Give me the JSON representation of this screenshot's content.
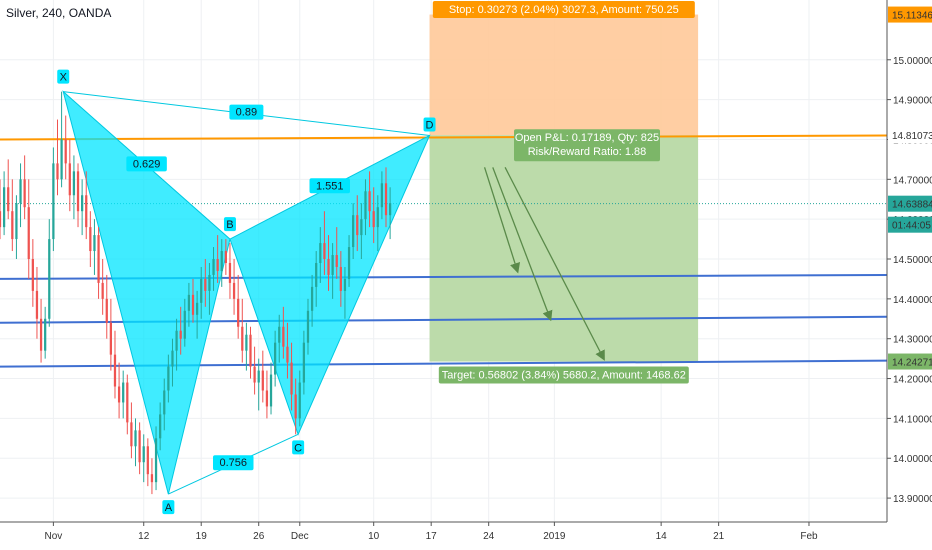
{
  "header": {
    "title": "Silver, 240, OANDA"
  },
  "colors": {
    "pattern_fill": "#00e5ff",
    "pattern_stroke": "#00c8e0",
    "up_candle": "#26a69a",
    "down_candle": "#ef5350",
    "stop_zone": "#ffc999",
    "target_zone": "#b8d9a5",
    "orange_line": "#ff9800",
    "blue_line": "#3f6fd1",
    "stop_label_bg": "#ff9800",
    "target_label_bg": "#7cb668",
    "current_price_bg": "#26a69a",
    "arrow": "#5a8a4a"
  },
  "chart_data": {
    "type": "candlestick",
    "symbol": "Silver",
    "timeframe": "240",
    "source": "OANDA",
    "ylim": [
      13.84,
      15.15
    ],
    "y_ticks": [
      "13.90000",
      "14.00000",
      "14.10000",
      "14.20000",
      "14.30000",
      "14.40000",
      "14.50000",
      "14.60000",
      "14.70000",
      "14.80000",
      "14.90000",
      "15.00000"
    ],
    "y_tick_values": [
      13.9,
      14.0,
      14.1,
      14.2,
      14.3,
      14.4,
      14.5,
      14.6,
      14.7,
      14.8,
      14.9,
      15.0
    ],
    "x_ticks": [
      "Nov",
      "12",
      "19",
      "26",
      "Dec",
      "10",
      "17",
      "24",
      "2019",
      "14",
      "21",
      "Feb"
    ],
    "x_tick_days": [
      1,
      12,
      19,
      26,
      31,
      40,
      47,
      54,
      62,
      75,
      82,
      93
    ],
    "xlim_days": [
      -5.5,
      102.5
    ],
    "price_labels": {
      "stop": "15.11346",
      "entry": "14.81073",
      "current": "14.63884",
      "countdown": "01:44:05",
      "target": "14.24271"
    },
    "price_label_values": {
      "stop": 15.11346,
      "entry": 14.81073,
      "current": 14.63884,
      "target": 14.24271
    },
    "harmonic_pattern": {
      "points": [
        {
          "label": "X",
          "day": 2.2,
          "price": 14.92
        },
        {
          "label": "A",
          "day": 15.0,
          "price": 13.91
        },
        {
          "label": "B",
          "day": 22.5,
          "price": 14.55
        },
        {
          "label": "C",
          "day": 30.8,
          "price": 14.06
        },
        {
          "label": "D",
          "day": 46.8,
          "price": 14.81
        }
      ],
      "ratios": [
        {
          "text": "0.89",
          "between": "X-D"
        },
        {
          "text": "0.629",
          "between": "X-B"
        },
        {
          "text": "1.551",
          "between": "B-D"
        },
        {
          "text": "0.756",
          "between": "A-C"
        }
      ]
    },
    "position": {
      "stop_text": "Stop: 0.30273 (2.04%) 3027.3, Amount: 750.25",
      "target_text": "Target: 0.56802 (3.84%) 5680.2, Amount: 1468.62",
      "open_pl_text": "Open P&L: 0.17189, Qty: 825",
      "rr_text": "Risk/Reward Ratio: 1.88",
      "entry": 14.81073,
      "stop": 15.11346,
      "target": 14.24271,
      "start_day": 46.8,
      "end_day": 79.5
    },
    "horizontal_lines": [
      {
        "color": "orange",
        "price_left": 14.8,
        "price_right": 14.81
      },
      {
        "color": "blue",
        "price_left": 14.45,
        "price_right": 14.46
      },
      {
        "color": "blue",
        "price_left": 14.34,
        "price_right": 14.355
      },
      {
        "color": "blue",
        "price_left": 14.23,
        "price_right": 14.245
      }
    ],
    "arrows": [
      {
        "from_day": 53.5,
        "from_price": 14.73,
        "to_day": 57.5,
        "to_price": 14.47
      },
      {
        "from_day": 54.5,
        "from_price": 14.73,
        "to_day": 61.5,
        "to_price": 14.35
      },
      {
        "from_day": 56.0,
        "from_price": 14.73,
        "to_day": 68.0,
        "to_price": 14.25
      }
    ],
    "ohlc": [
      {
        "d": -5.5,
        "o": 14.62,
        "h": 14.7,
        "l": 14.55,
        "c": 14.58
      },
      {
        "d": -5.0,
        "o": 14.58,
        "h": 14.72,
        "l": 14.56,
        "c": 14.68
      },
      {
        "d": -4.5,
        "o": 14.68,
        "h": 14.75,
        "l": 14.6,
        "c": 14.62
      },
      {
        "d": -4.0,
        "o": 14.62,
        "h": 14.7,
        "l": 14.52,
        "c": 14.55
      },
      {
        "d": -3.5,
        "o": 14.55,
        "h": 14.66,
        "l": 14.5,
        "c": 14.64
      },
      {
        "d": -3.0,
        "o": 14.64,
        "h": 14.74,
        "l": 14.58,
        "c": 14.7
      },
      {
        "d": -2.5,
        "o": 14.7,
        "h": 14.76,
        "l": 14.6,
        "c": 14.63
      },
      {
        "d": -2.0,
        "o": 14.63,
        "h": 14.7,
        "l": 14.45,
        "c": 14.5
      },
      {
        "d": -1.5,
        "o": 14.5,
        "h": 14.55,
        "l": 14.38,
        "c": 14.42
      },
      {
        "d": -1.0,
        "o": 14.42,
        "h": 14.48,
        "l": 14.3,
        "c": 14.35
      },
      {
        "d": -0.5,
        "o": 14.35,
        "h": 14.4,
        "l": 14.24,
        "c": 14.27
      },
      {
        "d": 0.0,
        "o": 14.27,
        "h": 14.38,
        "l": 14.25,
        "c": 14.35
      },
      {
        "d": 0.5,
        "o": 14.35,
        "h": 14.6,
        "l": 14.33,
        "c": 14.55
      },
      {
        "d": 1.0,
        "o": 14.55,
        "h": 14.78,
        "l": 14.52,
        "c": 14.74
      },
      {
        "d": 1.5,
        "o": 14.74,
        "h": 14.85,
        "l": 14.66,
        "c": 14.7
      },
      {
        "d": 2.0,
        "o": 14.7,
        "h": 14.92,
        "l": 14.68,
        "c": 14.8
      },
      {
        "d": 2.5,
        "o": 14.8,
        "h": 14.86,
        "l": 14.7,
        "c": 14.74
      },
      {
        "d": 3.0,
        "o": 14.74,
        "h": 14.8,
        "l": 14.62,
        "c": 14.66
      },
      {
        "d": 3.5,
        "o": 14.66,
        "h": 14.76,
        "l": 14.6,
        "c": 14.72
      },
      {
        "d": 4.0,
        "o": 14.72,
        "h": 14.74,
        "l": 14.58,
        "c": 14.62
      },
      {
        "d": 4.5,
        "o": 14.62,
        "h": 14.7,
        "l": 14.56,
        "c": 14.66
      },
      {
        "d": 5.0,
        "o": 14.66,
        "h": 14.72,
        "l": 14.55,
        "c": 14.58
      },
      {
        "d": 5.5,
        "o": 14.58,
        "h": 14.62,
        "l": 14.48,
        "c": 14.52
      },
      {
        "d": 6.0,
        "o": 14.52,
        "h": 14.6,
        "l": 14.46,
        "c": 14.56
      },
      {
        "d": 6.5,
        "o": 14.56,
        "h": 14.58,
        "l": 14.4,
        "c": 14.44
      },
      {
        "d": 7.0,
        "o": 14.44,
        "h": 14.5,
        "l": 14.36,
        "c": 14.4
      },
      {
        "d": 7.5,
        "o": 14.4,
        "h": 14.46,
        "l": 14.3,
        "c": 14.34
      },
      {
        "d": 8.0,
        "o": 14.34,
        "h": 14.4,
        "l": 14.22,
        "c": 14.26
      },
      {
        "d": 8.5,
        "o": 14.26,
        "h": 14.32,
        "l": 14.15,
        "c": 14.18
      },
      {
        "d": 9.0,
        "o": 14.18,
        "h": 14.24,
        "l": 14.1,
        "c": 14.14
      },
      {
        "d": 9.5,
        "o": 14.14,
        "h": 14.22,
        "l": 14.1,
        "c": 14.19
      },
      {
        "d": 10.0,
        "o": 14.19,
        "h": 14.21,
        "l": 14.06,
        "c": 14.09
      },
      {
        "d": 10.5,
        "o": 14.09,
        "h": 14.14,
        "l": 14.0,
        "c": 14.03
      },
      {
        "d": 11.0,
        "o": 14.03,
        "h": 14.1,
        "l": 13.98,
        "c": 14.07
      },
      {
        "d": 11.5,
        "o": 14.07,
        "h": 14.09,
        "l": 13.96,
        "c": 13.99
      },
      {
        "d": 12.0,
        "o": 13.99,
        "h": 14.06,
        "l": 13.94,
        "c": 14.03
      },
      {
        "d": 12.5,
        "o": 14.03,
        "h": 14.05,
        "l": 13.93,
        "c": 13.96
      },
      {
        "d": 13.0,
        "o": 13.96,
        "h": 14.0,
        "l": 13.91,
        "c": 13.94
      },
      {
        "d": 13.5,
        "o": 13.94,
        "h": 14.08,
        "l": 13.92,
        "c": 14.05
      },
      {
        "d": 14.0,
        "o": 14.05,
        "h": 14.14,
        "l": 14.02,
        "c": 14.11
      },
      {
        "d": 14.5,
        "o": 14.11,
        "h": 14.2,
        "l": 14.07,
        "c": 14.17
      },
      {
        "d": 15.0,
        "o": 14.17,
        "h": 14.26,
        "l": 14.14,
        "c": 14.23
      },
      {
        "d": 15.5,
        "o": 14.23,
        "h": 14.3,
        "l": 14.18,
        "c": 14.27
      },
      {
        "d": 16.0,
        "o": 14.27,
        "h": 14.35,
        "l": 14.22,
        "c": 14.32
      },
      {
        "d": 16.5,
        "o": 14.32,
        "h": 14.38,
        "l": 14.26,
        "c": 14.3
      },
      {
        "d": 17.0,
        "o": 14.3,
        "h": 14.4,
        "l": 14.28,
        "c": 14.37
      },
      {
        "d": 17.5,
        "o": 14.37,
        "h": 14.44,
        "l": 14.33,
        "c": 14.41
      },
      {
        "d": 18.0,
        "o": 14.41,
        "h": 14.45,
        "l": 14.34,
        "c": 14.36
      },
      {
        "d": 18.5,
        "o": 14.36,
        "h": 14.42,
        "l": 14.3,
        "c": 14.39
      },
      {
        "d": 19.0,
        "o": 14.39,
        "h": 14.48,
        "l": 14.35,
        "c": 14.45
      },
      {
        "d": 19.5,
        "o": 14.45,
        "h": 14.5,
        "l": 14.38,
        "c": 14.42
      },
      {
        "d": 20.0,
        "o": 14.42,
        "h": 14.49,
        "l": 14.36,
        "c": 14.46
      },
      {
        "d": 20.5,
        "o": 14.46,
        "h": 14.53,
        "l": 14.42,
        "c": 14.5
      },
      {
        "d": 21.0,
        "o": 14.5,
        "h": 14.56,
        "l": 14.44,
        "c": 14.47
      },
      {
        "d": 21.5,
        "o": 14.47,
        "h": 14.55,
        "l": 14.43,
        "c": 14.52
      },
      {
        "d": 22.0,
        "o": 14.52,
        "h": 14.55,
        "l": 14.46,
        "c": 14.49
      },
      {
        "d": 22.5,
        "o": 14.49,
        "h": 14.54,
        "l": 14.4,
        "c": 14.44
      },
      {
        "d": 23.0,
        "o": 14.44,
        "h": 14.5,
        "l": 14.36,
        "c": 14.4
      },
      {
        "d": 23.5,
        "o": 14.4,
        "h": 14.46,
        "l": 14.3,
        "c": 14.33
      },
      {
        "d": 24.0,
        "o": 14.33,
        "h": 14.4,
        "l": 14.24,
        "c": 14.27
      },
      {
        "d": 24.5,
        "o": 14.27,
        "h": 14.34,
        "l": 14.22,
        "c": 14.31
      },
      {
        "d": 25.0,
        "o": 14.31,
        "h": 14.33,
        "l": 14.2,
        "c": 14.23
      },
      {
        "d": 25.5,
        "o": 14.23,
        "h": 14.28,
        "l": 14.16,
        "c": 14.19
      },
      {
        "d": 26.0,
        "o": 14.19,
        "h": 14.25,
        "l": 14.12,
        "c": 14.22
      },
      {
        "d": 26.5,
        "o": 14.22,
        "h": 14.27,
        "l": 14.14,
        "c": 14.17
      },
      {
        "d": 27.0,
        "o": 14.17,
        "h": 14.22,
        "l": 14.1,
        "c": 14.13
      },
      {
        "d": 27.5,
        "o": 14.13,
        "h": 14.24,
        "l": 14.11,
        "c": 14.21
      },
      {
        "d": 28.0,
        "o": 14.21,
        "h": 14.32,
        "l": 14.18,
        "c": 14.29
      },
      {
        "d": 28.5,
        "o": 14.29,
        "h": 14.36,
        "l": 14.24,
        "c": 14.33
      },
      {
        "d": 29.0,
        "o": 14.33,
        "h": 14.38,
        "l": 14.25,
        "c": 14.28
      },
      {
        "d": 29.5,
        "o": 14.28,
        "h": 14.34,
        "l": 14.2,
        "c": 14.24
      },
      {
        "d": 30.0,
        "o": 14.24,
        "h": 14.29,
        "l": 14.12,
        "c": 14.16
      },
      {
        "d": 30.5,
        "o": 14.16,
        "h": 14.2,
        "l": 14.06,
        "c": 14.1
      },
      {
        "d": 31.0,
        "o": 14.1,
        "h": 14.22,
        "l": 14.08,
        "c": 14.19
      },
      {
        "d": 31.5,
        "o": 14.19,
        "h": 14.32,
        "l": 14.16,
        "c": 14.29
      },
      {
        "d": 32.0,
        "o": 14.29,
        "h": 14.4,
        "l": 14.26,
        "c": 14.37
      },
      {
        "d": 32.5,
        "o": 14.37,
        "h": 14.46,
        "l": 14.33,
        "c": 14.43
      },
      {
        "d": 33.0,
        "o": 14.43,
        "h": 14.52,
        "l": 14.38,
        "c": 14.49
      },
      {
        "d": 33.5,
        "o": 14.49,
        "h": 14.58,
        "l": 14.44,
        "c": 14.54
      },
      {
        "d": 34.0,
        "o": 14.54,
        "h": 14.62,
        "l": 14.46,
        "c": 14.5
      },
      {
        "d": 34.5,
        "o": 14.5,
        "h": 14.56,
        "l": 14.42,
        "c": 14.46
      },
      {
        "d": 35.0,
        "o": 14.46,
        "h": 14.54,
        "l": 14.4,
        "c": 14.51
      },
      {
        "d": 35.5,
        "o": 14.51,
        "h": 14.58,
        "l": 14.45,
        "c": 14.48
      },
      {
        "d": 36.0,
        "o": 14.48,
        "h": 14.52,
        "l": 14.38,
        "c": 14.42
      },
      {
        "d": 36.5,
        "o": 14.42,
        "h": 14.48,
        "l": 14.35,
        "c": 14.45
      },
      {
        "d": 37.0,
        "o": 14.45,
        "h": 14.56,
        "l": 14.43,
        "c": 14.53
      },
      {
        "d": 37.5,
        "o": 14.53,
        "h": 14.64,
        "l": 14.5,
        "c": 14.61
      },
      {
        "d": 38.0,
        "o": 14.61,
        "h": 14.66,
        "l": 14.52,
        "c": 14.56
      },
      {
        "d": 38.5,
        "o": 14.56,
        "h": 14.64,
        "l": 14.5,
        "c": 14.6
      },
      {
        "d": 39.0,
        "o": 14.6,
        "h": 14.7,
        "l": 14.56,
        "c": 14.67
      },
      {
        "d": 39.5,
        "o": 14.67,
        "h": 14.72,
        "l": 14.58,
        "c": 14.62
      },
      {
        "d": 40.0,
        "o": 14.62,
        "h": 14.68,
        "l": 14.54,
        "c": 14.58
      },
      {
        "d": 40.5,
        "o": 14.58,
        "h": 14.66,
        "l": 14.52,
        "c": 14.63
      },
      {
        "d": 41.0,
        "o": 14.63,
        "h": 14.72,
        "l": 14.6,
        "c": 14.69
      },
      {
        "d": 41.5,
        "o": 14.69,
        "h": 14.73,
        "l": 14.58,
        "c": 14.61
      },
      {
        "d": 42.0,
        "o": 14.61,
        "h": 14.68,
        "l": 14.55,
        "c": 14.64
      }
    ]
  }
}
